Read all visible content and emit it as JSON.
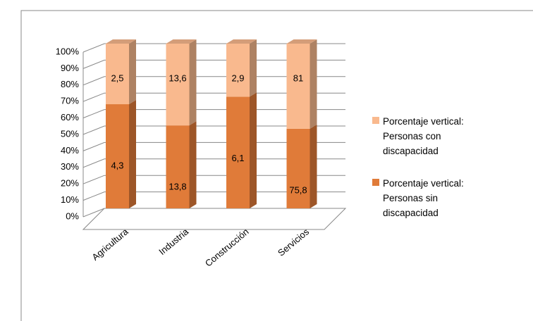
{
  "chart_data": {
    "type": "bar",
    "stacked_percent": true,
    "categories": [
      "Agricultura",
      "Industria",
      "Construcción",
      "Servicios"
    ],
    "series": [
      {
        "name": "Porcentaje vertical: Personas sin discapacidad",
        "color": "#E07B39",
        "values": [
          4.3,
          13.8,
          6.1,
          75.8
        ],
        "value_labels": [
          "4,3",
          "13,8",
          "6,1",
          "75,8"
        ]
      },
      {
        "name": "Porcentaje vertical: Personas con discapacidad",
        "color": "#F9B98E",
        "values": [
          2.5,
          13.6,
          2.9,
          81
        ],
        "value_labels": [
          "2,5",
          "13,6",
          "2,9",
          "81"
        ]
      }
    ],
    "ylim": [
      0,
      100
    ],
    "yticks": [
      {
        "value": 0,
        "label": "0%"
      },
      {
        "value": 10,
        "label": "10%"
      },
      {
        "value": 20,
        "label": "20%"
      },
      {
        "value": 30,
        "label": "30%"
      },
      {
        "value": 40,
        "label": "40%"
      },
      {
        "value": 50,
        "label": "50%"
      },
      {
        "value": 60,
        "label": "60%"
      },
      {
        "value": 70,
        "label": "70%"
      },
      {
        "value": 80,
        "label": "80%"
      },
      {
        "value": 90,
        "label": "90%"
      },
      {
        "value": 100,
        "label": "100%"
      }
    ],
    "grid": true,
    "legend": "right"
  }
}
